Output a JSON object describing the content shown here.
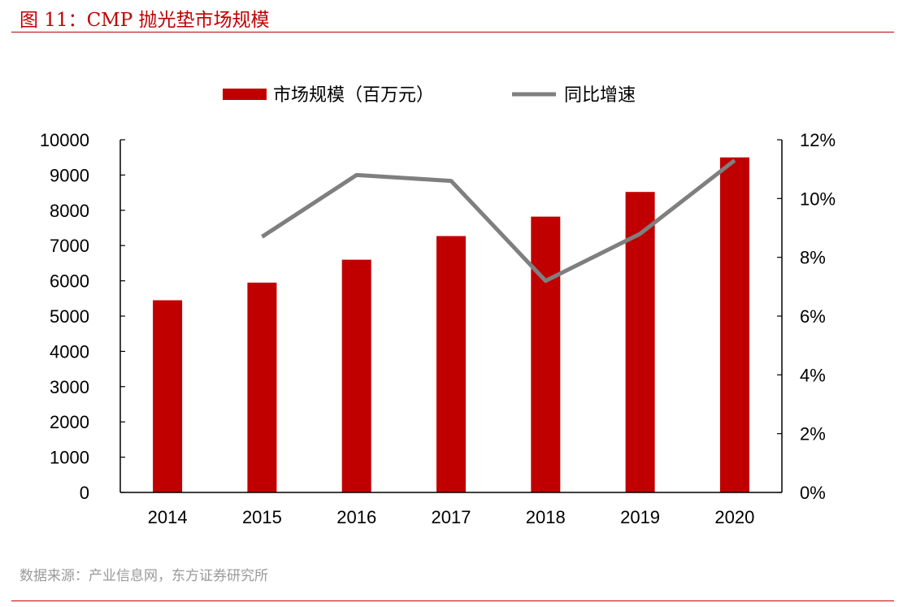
{
  "figure": {
    "title": "图 11：CMP 抛光垫市场规模",
    "source": "数据来源：产业信息网，东方证券研究所"
  },
  "chart_data": {
    "type": "bar",
    "categories": [
      "2014",
      "2015",
      "2016",
      "2017",
      "2018",
      "2019",
      "2020"
    ],
    "series": [
      {
        "name": "市场规模（百万元）",
        "type": "bar",
        "axis": "left",
        "color": "#c00000",
        "values": [
          5450,
          5950,
          6600,
          7270,
          7820,
          8520,
          9500
        ]
      },
      {
        "name": "同比增速",
        "type": "line",
        "axis": "right",
        "color": "#7f7f7f",
        "values": [
          null,
          0.087,
          0.108,
          0.106,
          0.072,
          0.088,
          0.113
        ]
      }
    ],
    "y_left": {
      "ylim": [
        0,
        10000
      ],
      "ticks": [
        0,
        1000,
        2000,
        3000,
        4000,
        5000,
        6000,
        7000,
        8000,
        9000,
        10000
      ],
      "tick_labels": [
        "0",
        "1000",
        "2000",
        "3000",
        "4000",
        "5000",
        "6000",
        "7000",
        "8000",
        "9000",
        "10000"
      ]
    },
    "y_right": {
      "ylim": [
        0,
        0.12
      ],
      "ticks": [
        0,
        0.02,
        0.04,
        0.06,
        0.08,
        0.1,
        0.12
      ],
      "tick_labels": [
        "0%",
        "2%",
        "4%",
        "6%",
        "8%",
        "10%",
        "12%"
      ]
    },
    "legend": {
      "position": "top",
      "entries": [
        "市场规模（百万元）",
        "同比增速"
      ]
    },
    "grid": false
  }
}
